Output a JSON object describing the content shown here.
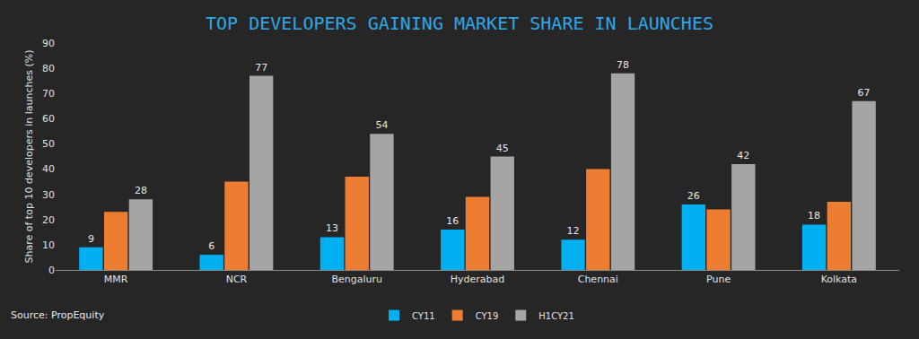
{
  "chart_data": {
    "type": "bar",
    "title": "TOP DEVELOPERS GAINING MARKET SHARE IN LAUNCHES",
    "y_label": "Share of top 10 developers in launches (%)",
    "annotations": [
      "Source: PropEquity"
    ],
    "categories": [
      "MMR",
      "NCR",
      "Bengaluru",
      "Hyderabad",
      "Chennai",
      "Pune",
      "Kolkata"
    ],
    "series": [
      {
        "name": "CY11",
        "color": "#00b0f0",
        "values": [
          9,
          6,
          13,
          16,
          12,
          26,
          18
        ],
        "data_labels": true
      },
      {
        "name": "CY19",
        "color": "#ed7d31",
        "values": [
          23,
          35,
          37,
          29,
          40,
          24,
          27
        ],
        "data_labels": false
      },
      {
        "name": "H1CY21",
        "color": "#a5a5a5",
        "values": [
          28,
          77,
          54,
          45,
          78,
          42,
          67
        ],
        "data_labels": true
      }
    ],
    "ylim": [
      0,
      90
    ],
    "yticks": [
      0,
      10,
      20,
      30,
      40,
      50,
      60,
      70,
      80,
      90
    ],
    "grid": false,
    "legend": "bottom"
  }
}
